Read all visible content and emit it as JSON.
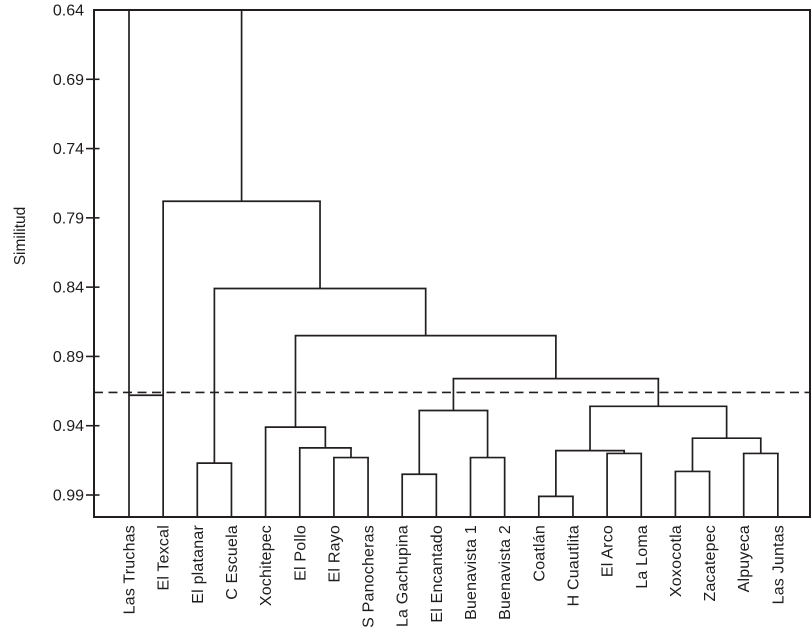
{
  "figure": {
    "background": "#ffffff",
    "line_color": "#231f20"
  },
  "chart_data": {
    "type": "dendrogram",
    "title": "",
    "xlabel": "",
    "ylabel": "Similitud",
    "y_axis_inverted": true,
    "ylim": [
      0.64,
      1.006
    ],
    "grid": false,
    "yticks": [
      "0.64",
      "0.69",
      "0.74",
      "0.79",
      "0.84",
      "0.89",
      "0.94",
      "0.99"
    ],
    "leaves": [
      "Las Truchas",
      "El Texcal",
      "El platanar",
      "C Escuela",
      "Xochitepec",
      "El Pollo",
      "El Rayo",
      "S Panocheras",
      "La Gachupina",
      "El Encantado",
      "Buenavista 1",
      "Buenavista 2",
      "Coatlán",
      "H Cuautlita",
      "El Arco",
      "La Loma",
      "Xoxocotla",
      "Zacatepec",
      "Alpuyeca",
      "Las Juntas"
    ],
    "merges": [
      {
        "id": "n1",
        "children": [
          "L2",
          "L3"
        ],
        "sim": 0.967
      },
      {
        "id": "n2",
        "children": [
          "L6",
          "L7"
        ],
        "sim": 0.963
      },
      {
        "id": "n3",
        "children": [
          "L5",
          "n2"
        ],
        "sim": 0.956
      },
      {
        "id": "n4",
        "children": [
          "L4",
          "n3"
        ],
        "sim": 0.941
      },
      {
        "id": "n5",
        "children": [
          "L8",
          "L9"
        ],
        "sim": 0.975
      },
      {
        "id": "n6",
        "children": [
          "L10",
          "L11"
        ],
        "sim": 0.963
      },
      {
        "id": "n7",
        "children": [
          "n5",
          "n6"
        ],
        "sim": 0.929
      },
      {
        "id": "n8",
        "children": [
          "L12",
          "L13"
        ],
        "sim": 0.991
      },
      {
        "id": "n9",
        "children": [
          "L14",
          "L15"
        ],
        "sim": 0.96
      },
      {
        "id": "n10",
        "children": [
          "n8",
          "n9"
        ],
        "sim": 0.958
      },
      {
        "id": "n11",
        "children": [
          "L16",
          "L17"
        ],
        "sim": 0.973
      },
      {
        "id": "n12",
        "children": [
          "L18",
          "L19"
        ],
        "sim": 0.96
      },
      {
        "id": "n13",
        "children": [
          "n11",
          "n12"
        ],
        "sim": 0.949
      },
      {
        "id": "n14",
        "children": [
          "n10",
          "n13"
        ],
        "sim": 0.926
      },
      {
        "id": "n15",
        "children": [
          "n7",
          "n14"
        ],
        "sim": 0.906
      },
      {
        "id": "n16",
        "children": [
          "n4",
          "n15"
        ],
        "sim": 0.875
      },
      {
        "id": "n17",
        "children": [
          "n1",
          "n16"
        ],
        "sim": 0.841
      },
      {
        "id": "n18",
        "children": [
          "L1",
          "n17"
        ],
        "sim": 0.778
      },
      {
        "id": "n19",
        "children": [
          "L0",
          "n18"
        ],
        "sim": 0.64
      }
    ],
    "cutoff_line": {
      "sim": 0.916,
      "style": "dashed",
      "legend_position": "none"
    },
    "extra_segment": {
      "between": [
        "L0",
        "L1"
      ],
      "sim": 0.918
    }
  }
}
